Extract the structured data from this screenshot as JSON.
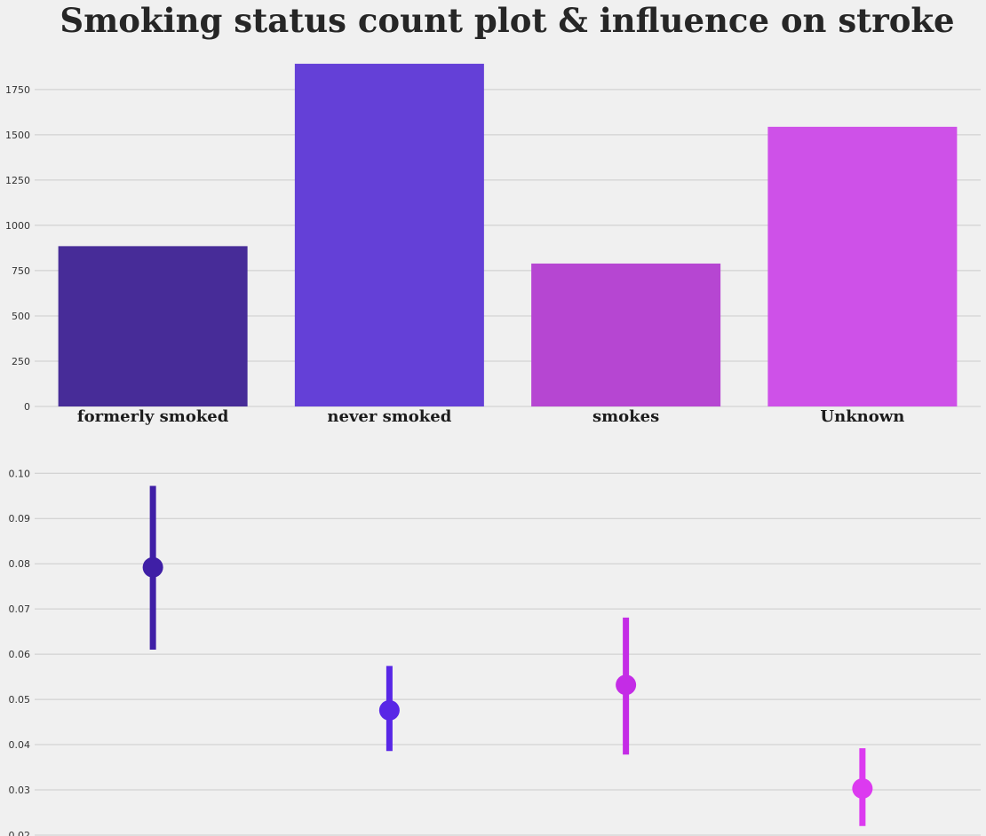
{
  "title": "Smoking status count plot & influence on stroke",
  "chart_data": [
    {
      "type": "bar",
      "categories": [
        "formerly smoked",
        "never smoked",
        "smokes",
        "Unknown"
      ],
      "values": [
        885,
        1892,
        789,
        1544
      ],
      "ylim": [
        0,
        1950
      ],
      "yticks": [
        0,
        250,
        500,
        750,
        1000,
        1250,
        1500,
        1750
      ],
      "grid": true,
      "colors": [
        "#472c98",
        "#6440d7",
        "#b646d2",
        "#ce51e8"
      ]
    },
    {
      "type": "scatter",
      "categories": [
        "formerly smoked",
        "never smoked",
        "smokes",
        "Unknown"
      ],
      "values": [
        0.0792,
        0.0476,
        0.0532,
        0.0303
      ],
      "ci_low": [
        0.061,
        0.0386,
        0.0378,
        0.022
      ],
      "ci_high": [
        0.0972,
        0.0574,
        0.0681,
        0.0392
      ],
      "ylim": [
        0.0198,
        0.1028
      ],
      "yticks": [
        0.02,
        0.03,
        0.04,
        0.05,
        0.06,
        0.07,
        0.08,
        0.09,
        0.1
      ],
      "ytick_labels": [
        "0.02",
        "0.03",
        "0.04",
        "0.05",
        "0.06",
        "0.07",
        "0.08",
        "0.09",
        "0.10"
      ],
      "grid": true,
      "colors": [
        "#3f1fa6",
        "#5827e6",
        "#c42ce6",
        "#dc3af0"
      ]
    }
  ]
}
